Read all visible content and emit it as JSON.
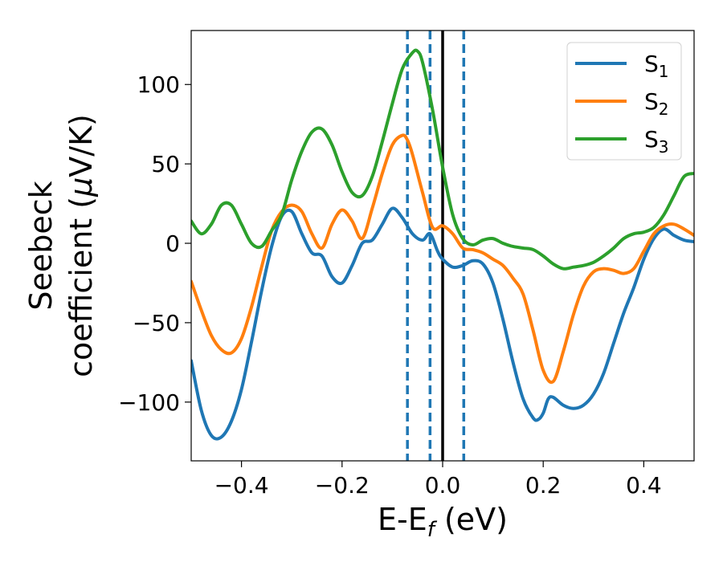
{
  "chart_data": {
    "type": "line",
    "xlabel": "E-E",
    "xlabel_sub": "f",
    "xlabel_unit": " (eV)",
    "ylabel_line1": "Seebeck",
    "ylabel_line2_text": "coefficient  (",
    "ylabel_line2_mu": "μ",
    "ylabel_line2_unit": "V/K)",
    "xlim": [
      -0.5,
      0.5
    ],
    "ylim": [
      -137,
      134
    ],
    "xticks": [
      -0.4,
      -0.2,
      0.0,
      0.2,
      0.4
    ],
    "xtick_labels": [
      "−0.4",
      "−0.2",
      "0.0",
      "0.2",
      "0.4"
    ],
    "yticks": [
      -100,
      -50,
      0,
      50,
      100
    ],
    "ytick_labels": [
      "−100",
      "−50",
      "0",
      "50",
      "100"
    ],
    "grid": false,
    "legend_position": "top-right",
    "vertical_lines": [
      {
        "x": -0.07,
        "style": "dashed",
        "color": "#1f77b4"
      },
      {
        "x": -0.025,
        "style": "dashed",
        "color": "#1f77b4"
      },
      {
        "x": 0.0,
        "style": "solid",
        "color": "#000000"
      },
      {
        "x": 0.042,
        "style": "dashed",
        "color": "#1f77b4"
      }
    ],
    "series": [
      {
        "name": "S",
        "sub": "1",
        "color": "#1f77b4",
        "x": [
          -0.5,
          -0.48,
          -0.46,
          -0.44,
          -0.42,
          -0.4,
          -0.38,
          -0.36,
          -0.34,
          -0.32,
          -0.3,
          -0.28,
          -0.26,
          -0.24,
          -0.22,
          -0.2,
          -0.18,
          -0.16,
          -0.14,
          -0.12,
          -0.1,
          -0.08,
          -0.06,
          -0.04,
          -0.025,
          -0.01,
          0.0,
          0.02,
          0.04,
          0.06,
          0.08,
          0.1,
          0.12,
          0.14,
          0.16,
          0.18,
          0.19,
          0.2,
          0.21,
          0.22,
          0.24,
          0.26,
          0.28,
          0.3,
          0.32,
          0.34,
          0.36,
          0.38,
          0.4,
          0.42,
          0.44,
          0.46,
          0.48,
          0.5
        ],
        "y": [
          -74,
          -105,
          -121,
          -122,
          -112,
          -92,
          -62,
          -30,
          -2,
          17,
          20,
          6,
          -6,
          -8,
          -21,
          -25,
          -14,
          0,
          2,
          12,
          22,
          16,
          6,
          2,
          6,
          -5,
          -10,
          -15,
          -14,
          -11,
          -13,
          -25,
          -48,
          -75,
          -98,
          -110,
          -111,
          -107,
          -98,
          -97,
          -102,
          -104,
          -102,
          -95,
          -82,
          -63,
          -44,
          -28,
          -10,
          3,
          9,
          5,
          2,
          1
        ]
      },
      {
        "name": "S",
        "sub": "2",
        "color": "#ff7f0e",
        "x": [
          -0.5,
          -0.48,
          -0.46,
          -0.44,
          -0.42,
          -0.4,
          -0.38,
          -0.36,
          -0.34,
          -0.32,
          -0.3,
          -0.28,
          -0.26,
          -0.24,
          -0.22,
          -0.2,
          -0.18,
          -0.16,
          -0.14,
          -0.12,
          -0.1,
          -0.08,
          -0.07,
          -0.06,
          -0.04,
          -0.02,
          0.0,
          0.02,
          0.04,
          0.06,
          0.08,
          0.1,
          0.12,
          0.14,
          0.16,
          0.18,
          0.2,
          0.22,
          0.24,
          0.26,
          0.28,
          0.3,
          0.32,
          0.34,
          0.36,
          0.38,
          0.4,
          0.42,
          0.44,
          0.46,
          0.48,
          0.5
        ],
        "y": [
          -24,
          -42,
          -58,
          -67,
          -69,
          -60,
          -40,
          -15,
          8,
          20,
          24,
          20,
          6,
          -3,
          12,
          21,
          14,
          3,
          22,
          44,
          62,
          68,
          65,
          56,
          32,
          10,
          11,
          6,
          -3,
          -4,
          -6,
          -10,
          -14,
          -22,
          -32,
          -55,
          -80,
          -87,
          -68,
          -45,
          -27,
          -18,
          -16,
          -17,
          -19,
          -16,
          -5,
          6,
          11,
          12,
          9,
          5
        ]
      },
      {
        "name": "S",
        "sub": "3",
        "color": "#2ca02c",
        "x": [
          -0.5,
          -0.48,
          -0.46,
          -0.44,
          -0.42,
          -0.4,
          -0.38,
          -0.36,
          -0.34,
          -0.32,
          -0.3,
          -0.28,
          -0.26,
          -0.24,
          -0.22,
          -0.2,
          -0.18,
          -0.16,
          -0.14,
          -0.12,
          -0.1,
          -0.08,
          -0.06,
          -0.05,
          -0.04,
          -0.02,
          0.0,
          0.02,
          0.04,
          0.06,
          0.08,
          0.1,
          0.12,
          0.14,
          0.16,
          0.18,
          0.2,
          0.22,
          0.24,
          0.26,
          0.28,
          0.3,
          0.32,
          0.34,
          0.36,
          0.38,
          0.4,
          0.42,
          0.44,
          0.46,
          0.48,
          0.5
        ],
        "y": [
          14,
          6,
          12,
          24,
          24,
          12,
          0,
          -2,
          8,
          18,
          40,
          58,
          70,
          72,
          62,
          45,
          32,
          30,
          42,
          64,
          88,
          110,
          120,
          121,
          114,
          84,
          48,
          18,
          3,
          -1,
          2,
          3,
          0,
          -2,
          -3,
          -4,
          -8,
          -13,
          -16,
          -15,
          -14,
          -12,
          -8,
          -3,
          3,
          6,
          7,
          10,
          18,
          30,
          42,
          44
        ]
      }
    ]
  }
}
